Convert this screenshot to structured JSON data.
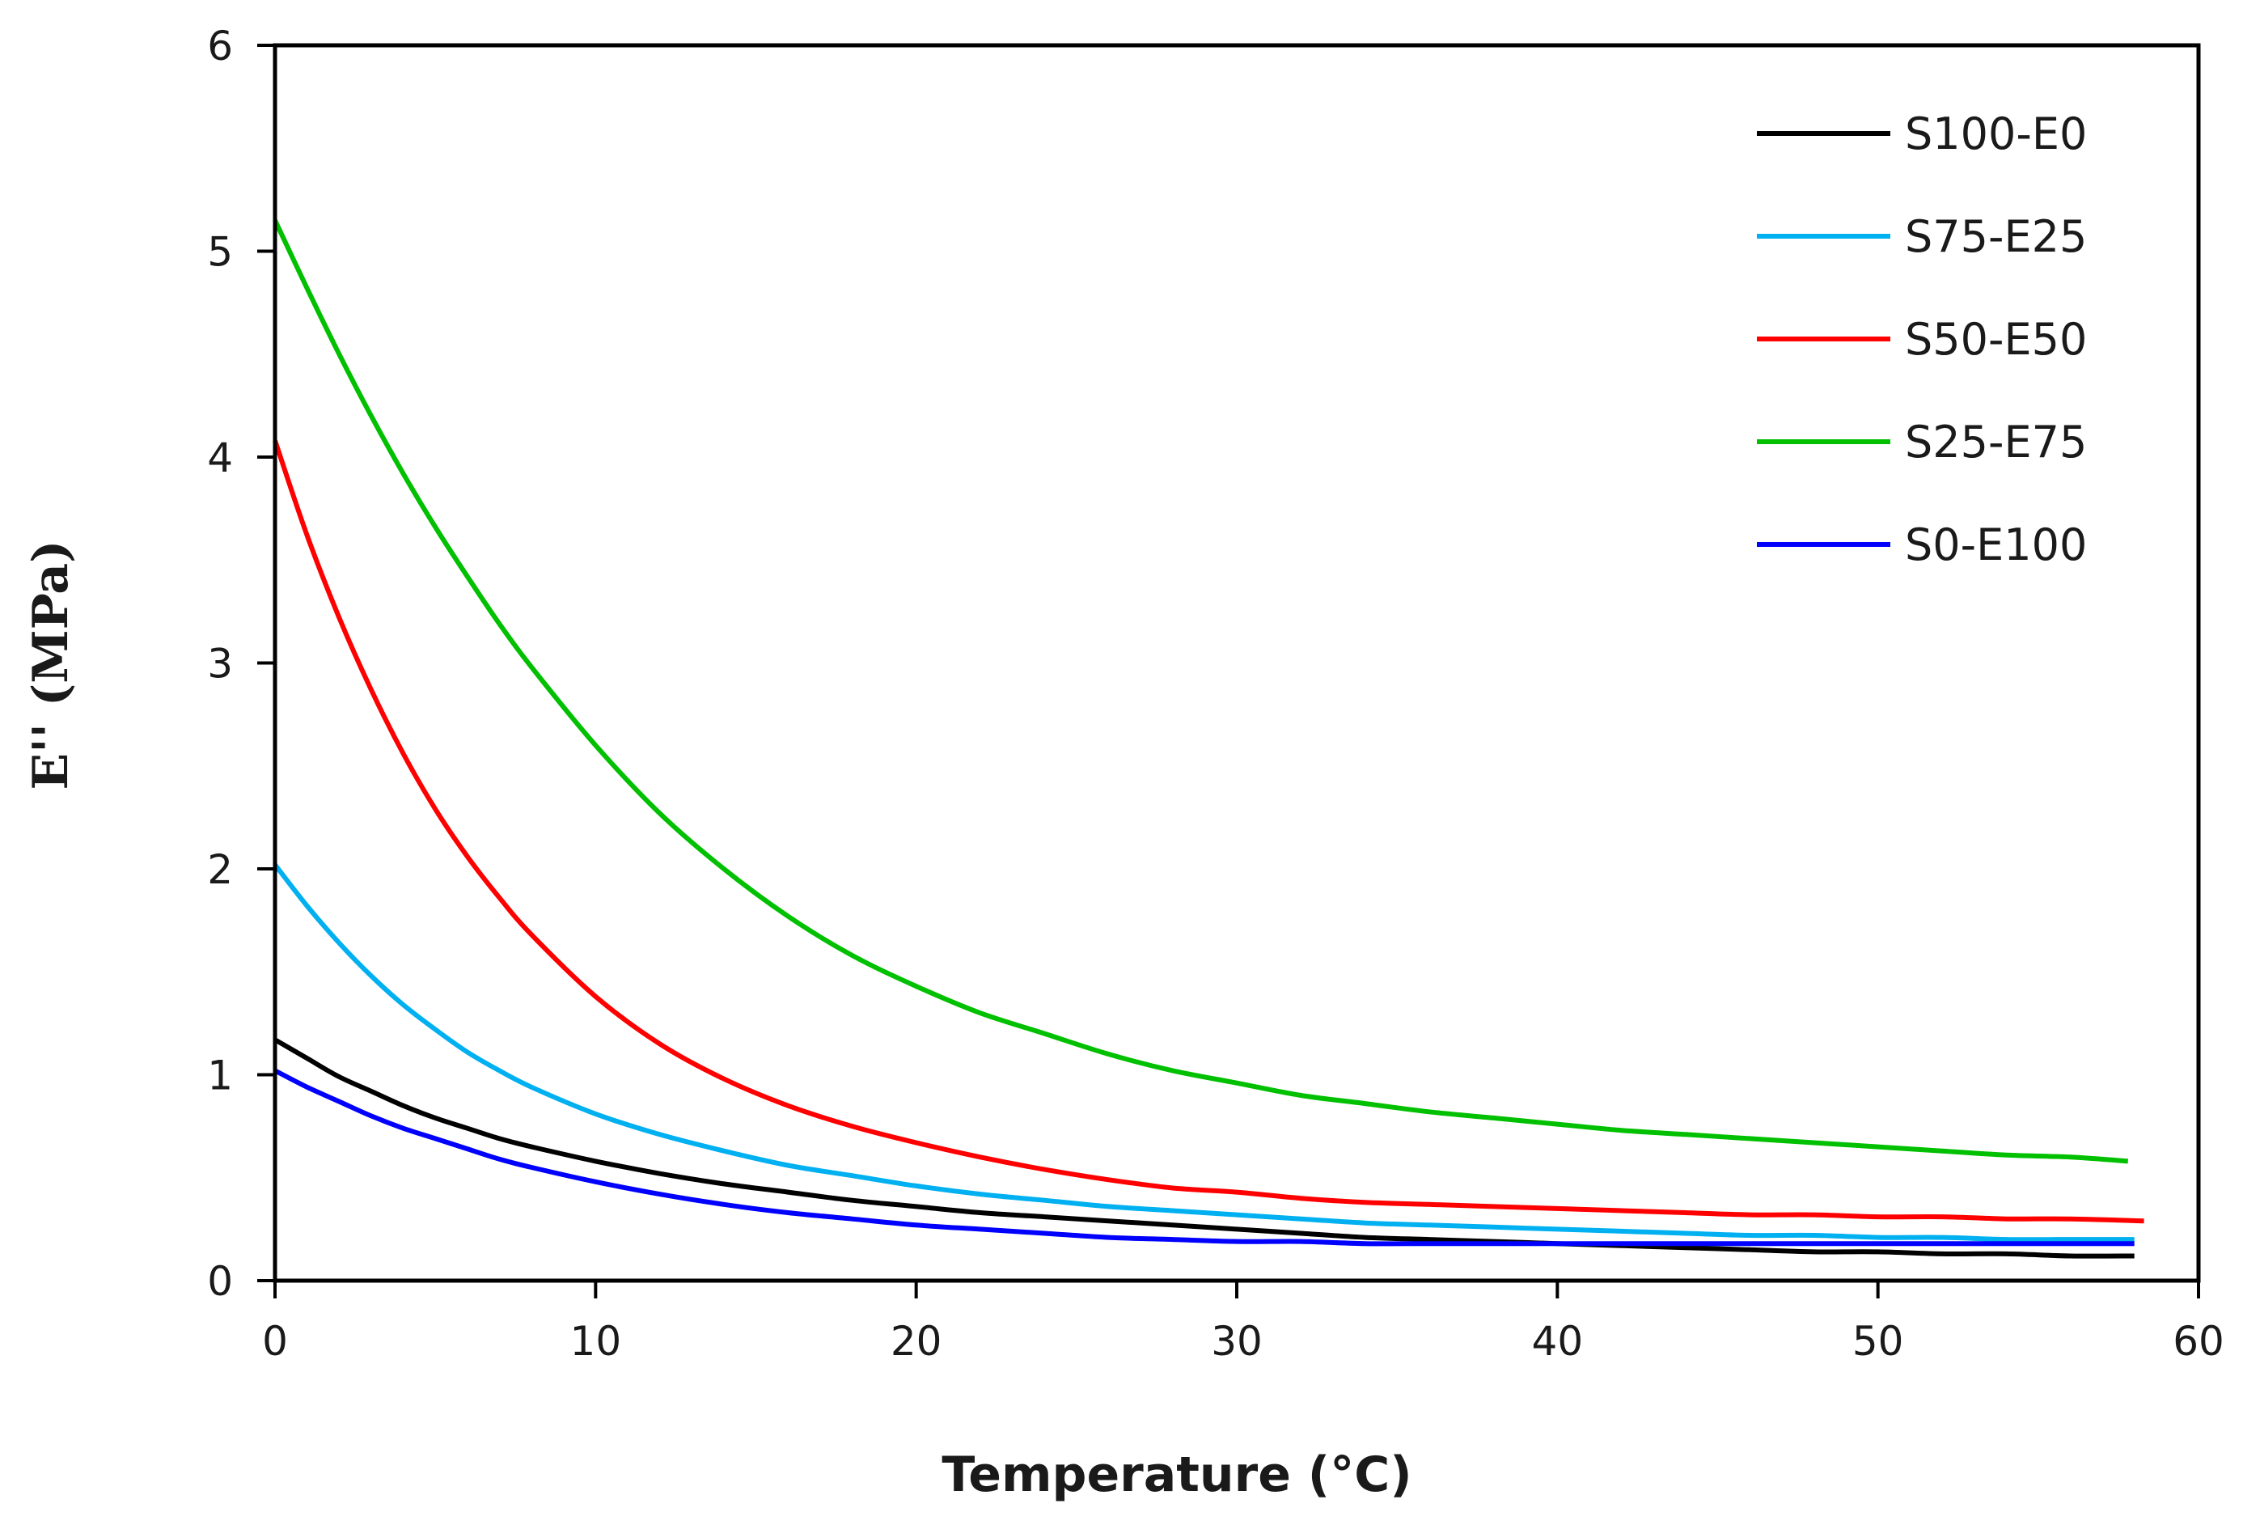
{
  "chart_data": {
    "type": "line",
    "title": "",
    "xlabel": "Temperature (°C)",
    "ylabel": "E'' (MPa)",
    "xlim": [
      0,
      60
    ],
    "ylim": [
      0,
      6
    ],
    "xticks": [
      "0",
      "10",
      "20",
      "30",
      "40",
      "50",
      "60"
    ],
    "yticks": [
      "0",
      "1",
      "2",
      "3",
      "4",
      "5",
      "6"
    ],
    "grid": false,
    "legend_position": "top-right",
    "x": [
      0,
      1,
      2,
      3,
      4,
      5,
      6,
      7,
      8,
      10,
      12,
      14,
      16,
      18,
      20,
      22,
      24,
      26,
      28,
      30,
      32,
      34,
      36,
      38,
      40,
      42,
      44,
      46,
      48,
      50,
      52,
      54,
      56,
      58
    ],
    "series": [
      {
        "name": "S100-E0",
        "color": "#000000",
        "x": [
          0,
          1,
          2,
          3,
          4,
          5,
          6,
          7,
          8,
          10,
          12,
          14,
          16,
          18,
          20,
          22,
          24,
          26,
          28,
          30,
          32,
          34,
          36,
          38,
          40,
          42,
          44,
          46,
          48,
          50,
          52,
          54,
          56,
          58
        ],
        "values": [
          1.17,
          1.08,
          0.99,
          0.92,
          0.85,
          0.79,
          0.74,
          0.69,
          0.65,
          0.58,
          0.52,
          0.47,
          0.43,
          0.39,
          0.36,
          0.33,
          0.31,
          0.29,
          0.27,
          0.25,
          0.23,
          0.21,
          0.2,
          0.19,
          0.18,
          0.17,
          0.16,
          0.15,
          0.14,
          0.14,
          0.13,
          0.13,
          0.12,
          0.12
        ]
      },
      {
        "name": "S75-E25",
        "color": "#00b0f0",
        "x": [
          0,
          1,
          2,
          3,
          4,
          5,
          6,
          7,
          8,
          10,
          12,
          14,
          16,
          18,
          20,
          22,
          24,
          26,
          28,
          30,
          32,
          34,
          36,
          38,
          40,
          42,
          44,
          46,
          48,
          50,
          52,
          54,
          56,
          58
        ],
        "values": [
          2.02,
          1.82,
          1.64,
          1.48,
          1.34,
          1.22,
          1.11,
          1.02,
          0.94,
          0.81,
          0.71,
          0.63,
          0.56,
          0.51,
          0.46,
          0.42,
          0.39,
          0.36,
          0.34,
          0.32,
          0.3,
          0.28,
          0.27,
          0.26,
          0.25,
          0.24,
          0.23,
          0.22,
          0.22,
          0.21,
          0.21,
          0.2,
          0.2,
          0.2
        ]
      },
      {
        "name": "S50-E50",
        "color": "#ff0000",
        "x": [
          0,
          1,
          2,
          3,
          4,
          5,
          6,
          7,
          8,
          10,
          12,
          14,
          16,
          18,
          20,
          22,
          24,
          26,
          28,
          30,
          32,
          34,
          36,
          38,
          40,
          42,
          44,
          46,
          48,
          50,
          52,
          54,
          56,
          58.3
        ],
        "values": [
          4.08,
          3.62,
          3.22,
          2.87,
          2.56,
          2.29,
          2.06,
          1.86,
          1.68,
          1.38,
          1.15,
          0.98,
          0.85,
          0.75,
          0.67,
          0.6,
          0.54,
          0.49,
          0.45,
          0.43,
          0.4,
          0.38,
          0.37,
          0.36,
          0.35,
          0.34,
          0.33,
          0.32,
          0.32,
          0.31,
          0.31,
          0.3,
          0.3,
          0.29
        ]
      },
      {
        "name": "S25-E75",
        "color": "#00c000",
        "x": [
          0,
          1,
          2,
          3,
          4,
          5,
          6,
          7,
          8,
          10,
          12,
          14,
          16,
          18,
          20,
          22,
          24,
          26,
          28,
          30,
          32,
          34,
          36,
          38,
          40,
          42,
          44,
          46,
          48,
          50,
          52,
          54,
          56,
          57.8
        ],
        "values": [
          5.15,
          4.82,
          4.5,
          4.2,
          3.92,
          3.66,
          3.42,
          3.19,
          2.98,
          2.6,
          2.27,
          2.0,
          1.77,
          1.58,
          1.43,
          1.3,
          1.2,
          1.1,
          1.02,
          0.96,
          0.9,
          0.86,
          0.82,
          0.79,
          0.76,
          0.73,
          0.71,
          0.69,
          0.67,
          0.65,
          0.63,
          0.61,
          0.6,
          0.58
        ]
      },
      {
        "name": "S0-E100",
        "color": "#0000ff",
        "x": [
          0,
          1,
          2,
          3,
          4,
          5,
          6,
          7,
          8,
          10,
          12,
          14,
          16,
          18,
          20,
          22,
          24,
          26,
          28,
          30,
          32,
          34,
          36,
          38,
          40,
          42,
          44,
          46,
          48,
          50,
          52,
          54,
          56,
          58
        ],
        "values": [
          1.02,
          0.94,
          0.87,
          0.8,
          0.74,
          0.69,
          0.64,
          0.59,
          0.55,
          0.48,
          0.42,
          0.37,
          0.33,
          0.3,
          0.27,
          0.25,
          0.23,
          0.21,
          0.2,
          0.19,
          0.19,
          0.18,
          0.18,
          0.18,
          0.18,
          0.18,
          0.18,
          0.18,
          0.18,
          0.18,
          0.18,
          0.18,
          0.18,
          0.18
        ]
      }
    ]
  }
}
